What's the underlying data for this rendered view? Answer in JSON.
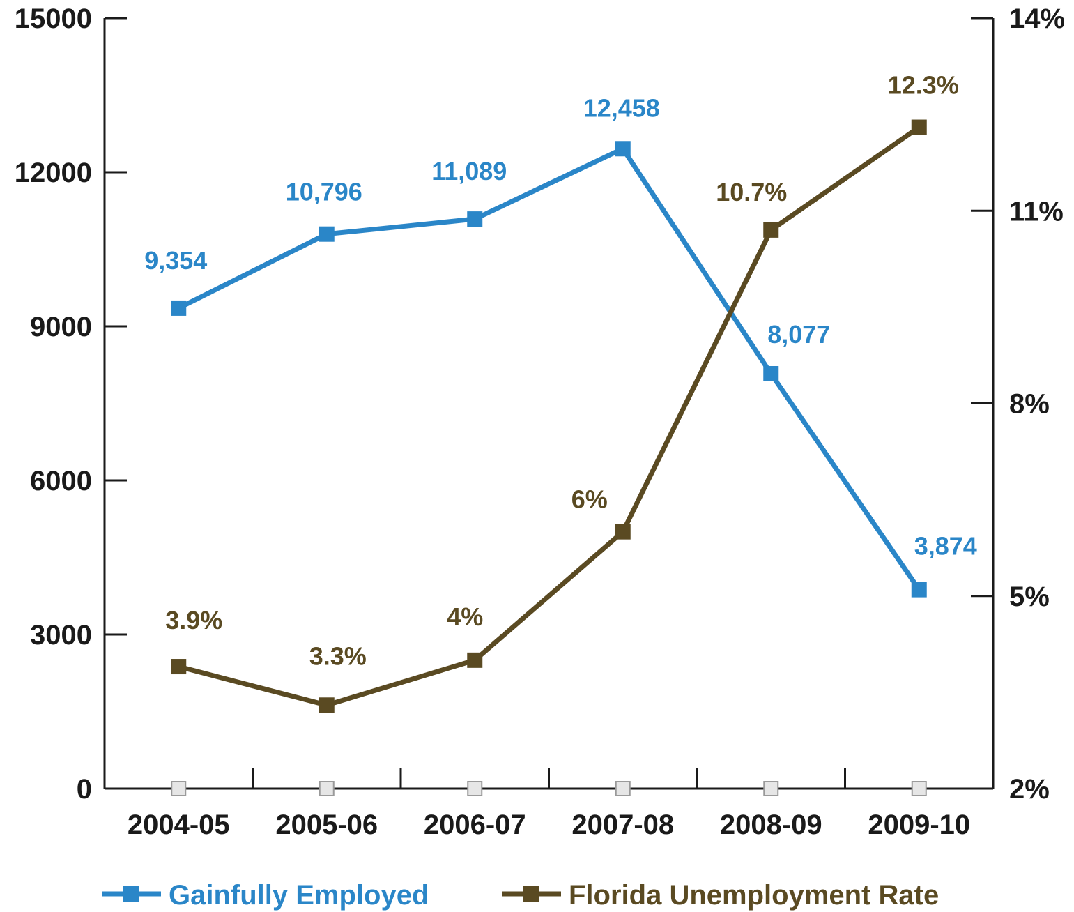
{
  "chart_data": {
    "type": "line",
    "title": "",
    "xlabel": "",
    "ylabel": "",
    "categories": [
      "2004-05",
      "2005-06",
      "2006-07",
      "2007-08",
      "2008-09",
      "2009-10"
    ],
    "y_left": {
      "range": [
        0,
        15000
      ],
      "ticks": [
        0,
        3000,
        6000,
        9000,
        12000,
        15000
      ],
      "tick_labels": [
        "0",
        "3000",
        "6000",
        "9000",
        "12000",
        "15000"
      ]
    },
    "y_right": {
      "range": [
        2,
        14
      ],
      "ticks": [
        2,
        5,
        8,
        11,
        14
      ],
      "tick_labels": [
        "2%",
        "5%",
        "8%",
        "11%",
        "14%"
      ]
    },
    "grid": false,
    "legend_position": "bottom",
    "series": [
      {
        "name": "Gainfully Employed",
        "axis": "left",
        "color": "#2a86c8",
        "values": [
          9354,
          10796,
          11089,
          12458,
          8077,
          3874
        ],
        "labels": [
          "9,354",
          "10,796",
          "11,089",
          "12,458",
          "8,077",
          "3,874"
        ]
      },
      {
        "name": "Florida Unemployment Rate",
        "axis": "right",
        "color": "#5a4a22",
        "values": [
          3.9,
          3.3,
          4.0,
          6.0,
          10.7,
          12.3
        ],
        "labels": [
          "3.9%",
          "3.3%",
          "4%",
          "6%",
          "10.7%",
          "12.3%"
        ]
      }
    ]
  }
}
